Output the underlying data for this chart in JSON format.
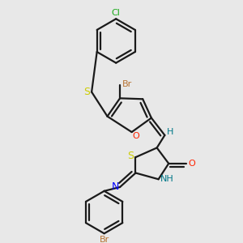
{
  "bg_color": "#e8e8e8",
  "bc": "#1a1a1a",
  "lw": 1.6,
  "colors": {
    "Br": "#b87333",
    "Cl": "#1aaa1a",
    "O": "#ff2200",
    "S": "#cccc00",
    "N": "#0000ff",
    "H": "#007788"
  },
  "figsize": [
    3.0,
    3.0
  ],
  "dpi": 100
}
